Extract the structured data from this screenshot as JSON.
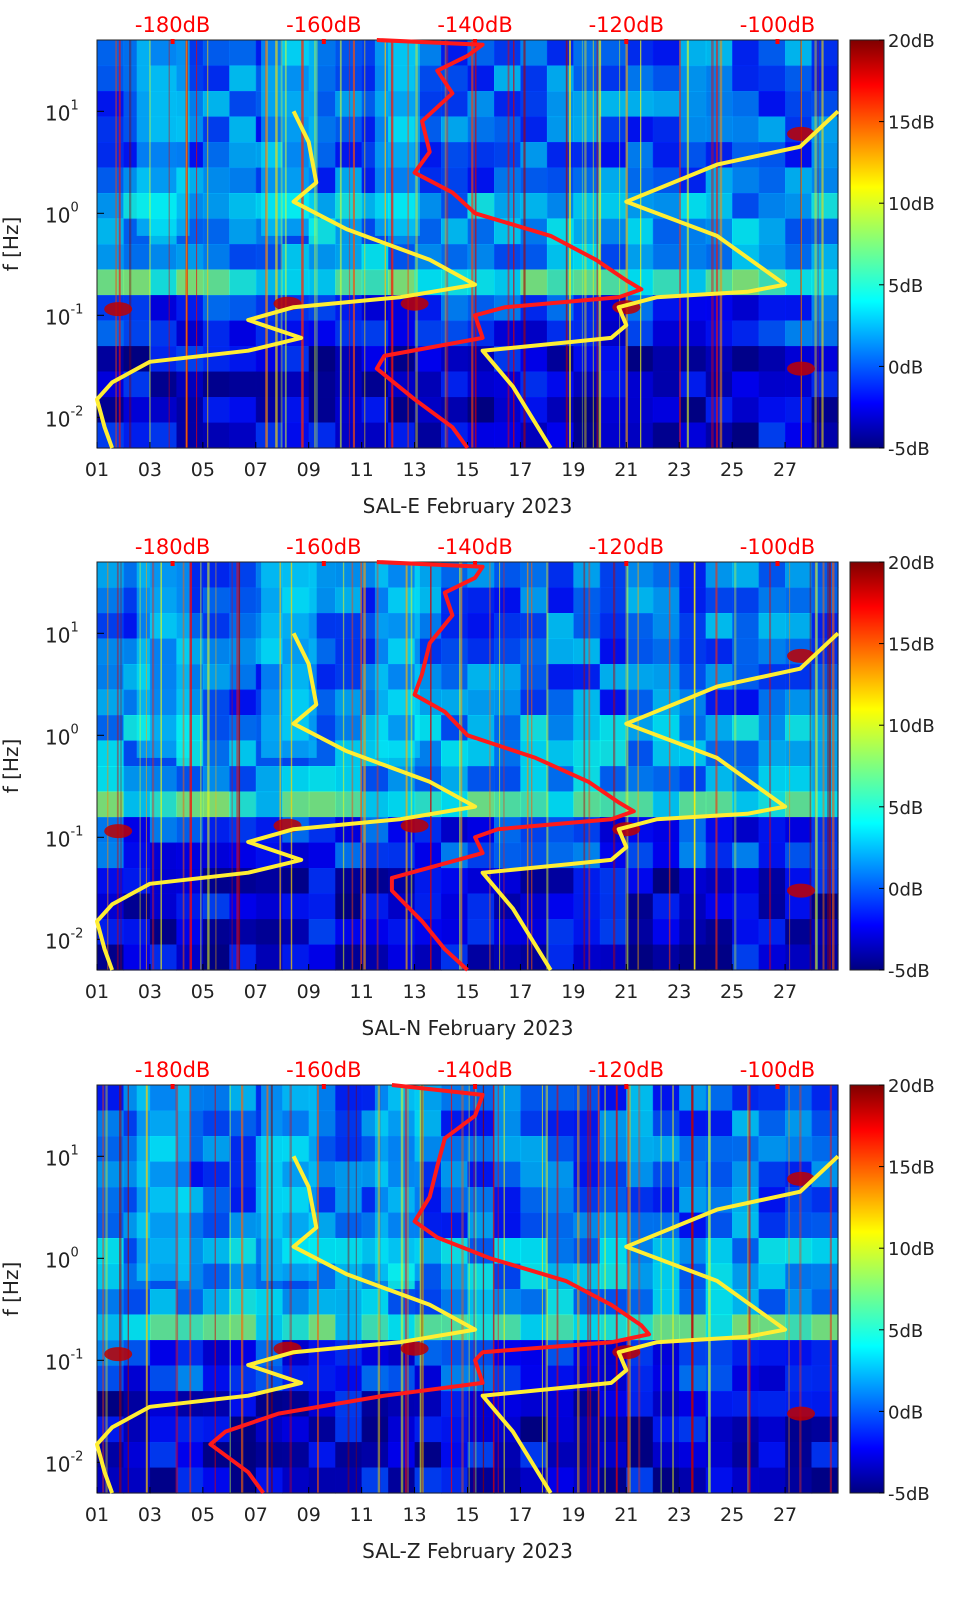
{
  "colors": {
    "noise_model": "#ff1a1a",
    "reference_curve": "#ffee33",
    "top_axis_labels": "#ff0000",
    "background": "#00007f"
  },
  "colormap": "jet",
  "chart_data": [
    {
      "type": "heatmap",
      "title": "SAL-E February 2023",
      "xlabel": "SAL-E February 2023",
      "ylabel": "f [Hz]",
      "x_ticks": [
        "01",
        "03",
        "05",
        "07",
        "09",
        "11",
        "13",
        "15",
        "17",
        "19",
        "21",
        "23",
        "25",
        "27"
      ],
      "x_range_days": [
        1,
        29
      ],
      "y_ticks": [
        "10^-2",
        "10^-1",
        "10^0",
        "10^1"
      ],
      "y_range_hz": [
        0.005,
        50
      ],
      "top_ticks": [
        "-180dB",
        "-160dB",
        "-140dB",
        "-120dB",
        "-100dB"
      ],
      "top_range_db": [
        -190,
        -92
      ],
      "colorbar": {
        "ticks": [
          "20dB",
          "15dB",
          "10dB",
          "5dB",
          "0dB",
          "-5dB"
        ],
        "range_db": [
          -5,
          20
        ]
      },
      "series": [
        {
          "name": "PSD (red)",
          "color": "red",
          "points": [
            [
              -153,
              50
            ],
            [
              -139,
              45
            ],
            [
              -141,
              35
            ],
            [
              -145,
              25
            ],
            [
              -143,
              15
            ],
            [
              -147,
              8
            ],
            [
              -146,
              4
            ],
            [
              -148,
              2.5
            ],
            [
              -143,
              1.6
            ],
            [
              -140,
              1.0
            ],
            [
              -130,
              0.6
            ],
            [
              -124,
              0.35
            ],
            [
              -120,
              0.22
            ],
            [
              -118,
              0.18
            ],
            [
              -121,
              0.15
            ],
            [
              -136,
              0.12
            ],
            [
              -140,
              0.1
            ],
            [
              -139,
              0.06
            ],
            [
              -152,
              0.04
            ],
            [
              -153,
              0.03
            ],
            [
              -148,
              0.015
            ],
            [
              -143,
              0.008
            ],
            [
              -141,
              0.005
            ]
          ]
        },
        {
          "name": "Model curve A (yellow)",
          "color": "yellow",
          "points": [
            [
              -164,
              10
            ],
            [
              -162,
              5
            ],
            [
              -161,
              2
            ],
            [
              -164,
              1.3
            ],
            [
              -157,
              0.7
            ],
            [
              -146,
              0.35
            ],
            [
              -140,
              0.2
            ],
            [
              -150,
              0.15
            ],
            [
              -164,
              0.12
            ],
            [
              -170,
              0.09
            ],
            [
              -163,
              0.06
            ],
            [
              -170,
              0.045
            ],
            [
              -183,
              0.035
            ],
            [
              -188,
              0.022
            ],
            [
              -190,
              0.015
            ],
            [
              -189,
              0.008
            ],
            [
              -188,
              0.005
            ]
          ]
        },
        {
          "name": "Model curve B (yellow)",
          "color": "yellow",
          "points": [
            [
              -92,
              10
            ],
            [
              -97,
              4.5
            ],
            [
              -108,
              3
            ],
            [
              -120,
              1.3
            ],
            [
              -108,
              0.6
            ],
            [
              -99,
              0.2
            ],
            [
              -104,
              0.17
            ],
            [
              -116,
              0.15
            ],
            [
              -121,
              0.12
            ],
            [
              -120,
              0.08
            ],
            [
              -122,
              0.06
            ],
            [
              -127,
              0.055
            ],
            [
              -139,
              0.045
            ],
            [
              -135,
              0.02
            ],
            [
              -130,
              0.005
            ]
          ]
        }
      ]
    },
    {
      "type": "heatmap",
      "title": "SAL-N February 2023",
      "xlabel": "SAL-N February 2023",
      "ylabel": "f [Hz]",
      "x_ticks": [
        "01",
        "03",
        "05",
        "07",
        "09",
        "11",
        "13",
        "15",
        "17",
        "19",
        "21",
        "23",
        "25",
        "27"
      ],
      "x_range_days": [
        1,
        29
      ],
      "y_ticks": [
        "10^-2",
        "10^-1",
        "10^0",
        "10^1"
      ],
      "y_range_hz": [
        0.005,
        50
      ],
      "top_ticks": [
        "-180dB",
        "-160dB",
        "-140dB",
        "-120dB",
        "-100dB"
      ],
      "top_range_db": [
        -190,
        -92
      ],
      "colorbar": {
        "ticks": [
          "20dB",
          "15dB",
          "10dB",
          "5dB",
          "0dB",
          "-5dB"
        ],
        "range_db": [
          -5,
          20
        ]
      },
      "series": [
        {
          "name": "PSD (red)",
          "color": "red",
          "points": [
            [
              -153,
              50
            ],
            [
              -139,
              45
            ],
            [
              -140,
              35
            ],
            [
              -144,
              25
            ],
            [
              -143,
              15
            ],
            [
              -146,
              8
            ],
            [
              -147,
              4
            ],
            [
              -148,
              2.5
            ],
            [
              -144,
              1.7
            ],
            [
              -141,
              1.0
            ],
            [
              -132,
              0.6
            ],
            [
              -125,
              0.35
            ],
            [
              -121,
              0.22
            ],
            [
              -119,
              0.18
            ],
            [
              -122,
              0.15
            ],
            [
              -137,
              0.12
            ],
            [
              -140,
              0.1
            ],
            [
              -139,
              0.07
            ],
            [
              -151,
              0.04
            ],
            [
              -151,
              0.03
            ],
            [
              -147,
              0.015
            ],
            [
              -144,
              0.008
            ],
            [
              -141,
              0.005
            ]
          ]
        },
        {
          "name": "Model curve A (yellow)",
          "color": "yellow",
          "points": [
            [
              -164,
              10
            ],
            [
              -162,
              5
            ],
            [
              -161,
              2
            ],
            [
              -164,
              1.3
            ],
            [
              -157,
              0.7
            ],
            [
              -146,
              0.35
            ],
            [
              -140,
              0.2
            ],
            [
              -150,
              0.15
            ],
            [
              -164,
              0.12
            ],
            [
              -170,
              0.09
            ],
            [
              -163,
              0.06
            ],
            [
              -170,
              0.045
            ],
            [
              -183,
              0.035
            ],
            [
              -188,
              0.022
            ],
            [
              -190,
              0.015
            ],
            [
              -189,
              0.008
            ],
            [
              -188,
              0.005
            ]
          ]
        },
        {
          "name": "Model curve B (yellow)",
          "color": "yellow",
          "points": [
            [
              -92,
              10
            ],
            [
              -97,
              4.5
            ],
            [
              -108,
              3
            ],
            [
              -120,
              1.3
            ],
            [
              -108,
              0.6
            ],
            [
              -99,
              0.2
            ],
            [
              -104,
              0.17
            ],
            [
              -116,
              0.15
            ],
            [
              -121,
              0.12
            ],
            [
              -120,
              0.08
            ],
            [
              -122,
              0.06
            ],
            [
              -127,
              0.055
            ],
            [
              -139,
              0.045
            ],
            [
              -135,
              0.02
            ],
            [
              -130,
              0.005
            ]
          ]
        }
      ]
    },
    {
      "type": "heatmap",
      "title": "SAL-Z February 2023",
      "xlabel": "SAL-Z February 2023",
      "ylabel": "f [Hz]",
      "x_ticks": [
        "01",
        "03",
        "05",
        "07",
        "09",
        "11",
        "13",
        "15",
        "17",
        "19",
        "21",
        "23",
        "25",
        "27"
      ],
      "x_range_days": [
        1,
        29
      ],
      "y_ticks": [
        "10^-2",
        "10^-1",
        "10^0",
        "10^1"
      ],
      "y_range_hz": [
        0.005,
        50
      ],
      "top_ticks": [
        "-180dB",
        "-160dB",
        "-140dB",
        "-120dB",
        "-100dB"
      ],
      "top_range_db": [
        -190,
        -92
      ],
      "colorbar": {
        "ticks": [
          "20dB",
          "15dB",
          "10dB",
          "5dB",
          "0dB",
          "-5dB"
        ],
        "range_db": [
          -5,
          20
        ]
      },
      "series": [
        {
          "name": "PSD (red)",
          "color": "red",
          "points": [
            [
              -151,
              50
            ],
            [
              -139,
              40
            ],
            [
              -140,
              25
            ],
            [
              -144,
              15
            ],
            [
              -145,
              8
            ],
            [
              -146,
              4
            ],
            [
              -148,
              2.3
            ],
            [
              -145,
              1.6
            ],
            [
              -138,
              1.0
            ],
            [
              -128,
              0.6
            ],
            [
              -122,
              0.35
            ],
            [
              -118,
              0.22
            ],
            [
              -117,
              0.18
            ],
            [
              -122,
              0.15
            ],
            [
              -139,
              0.12
            ],
            [
              -140,
              0.1
            ],
            [
              -139,
              0.06
            ],
            [
              -152,
              0.045
            ],
            [
              -166,
              0.03
            ],
            [
              -173,
              0.02
            ],
            [
              -175,
              0.015
            ],
            [
              -170,
              0.008
            ],
            [
              -168,
              0.005
            ]
          ]
        },
        {
          "name": "Model curve A (yellow)",
          "color": "yellow",
          "points": [
            [
              -164,
              10
            ],
            [
              -162,
              5
            ],
            [
              -161,
              2
            ],
            [
              -164,
              1.3
            ],
            [
              -157,
              0.7
            ],
            [
              -146,
              0.35
            ],
            [
              -140,
              0.2
            ],
            [
              -150,
              0.15
            ],
            [
              -164,
              0.12
            ],
            [
              -170,
              0.09
            ],
            [
              -163,
              0.06
            ],
            [
              -170,
              0.045
            ],
            [
              -183,
              0.035
            ],
            [
              -188,
              0.022
            ],
            [
              -190,
              0.015
            ],
            [
              -189,
              0.008
            ],
            [
              -188,
              0.005
            ]
          ]
        },
        {
          "name": "Model curve B (yellow)",
          "color": "yellow",
          "points": [
            [
              -92,
              10
            ],
            [
              -97,
              4.5
            ],
            [
              -108,
              3
            ],
            [
              -120,
              1.3
            ],
            [
              -108,
              0.6
            ],
            [
              -99,
              0.2
            ],
            [
              -104,
              0.17
            ],
            [
              -116,
              0.15
            ],
            [
              -121,
              0.12
            ],
            [
              -120,
              0.08
            ],
            [
              -122,
              0.06
            ],
            [
              -127,
              0.055
            ],
            [
              -139,
              0.045
            ],
            [
              -135,
              0.02
            ],
            [
              -130,
              0.005
            ]
          ]
        }
      ]
    }
  ]
}
